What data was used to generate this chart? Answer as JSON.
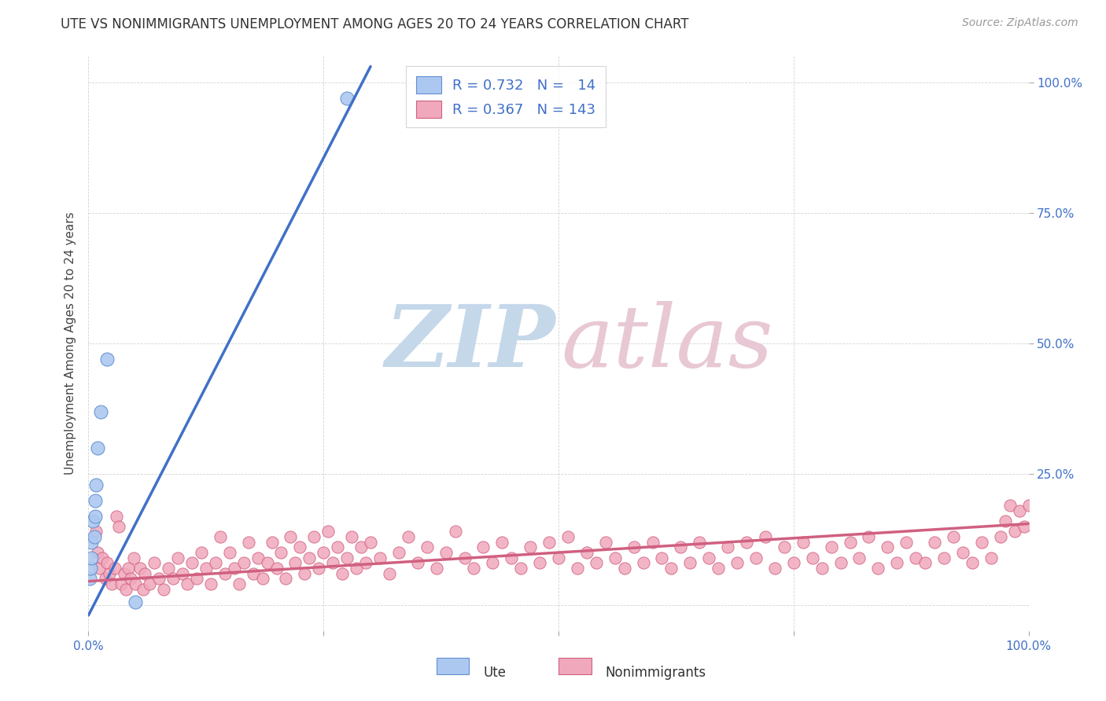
{
  "title": "UTE VS NONIMMIGRANTS UNEMPLOYMENT AMONG AGES 20 TO 24 YEARS CORRELATION CHART",
  "source": "Source: ZipAtlas.com",
  "ylabel": "Unemployment Among Ages 20 to 24 years",
  "xlim": [
    0.0,
    1.0
  ],
  "ylim": [
    -0.05,
    1.05
  ],
  "background_color": "#ffffff",
  "grid_color": "#c8c8c8",
  "title_color": "#333333",
  "source_color": "#999999",
  "ute_color": "#adc8f0",
  "ute_edge_color": "#6090d0",
  "nonimm_color": "#f0a8bc",
  "nonimm_edge_color": "#d06080",
  "ute_line_color": "#4070c8",
  "nonimm_line_color": "#d06080",
  "legend_R_ute": "0.732",
  "legend_N_ute": "14",
  "legend_R_nonimm": "0.367",
  "legend_N_nonimm": "143",
  "right_ytick_labels": [
    "25.0%",
    "50.0%",
    "75.0%",
    "100.0%"
  ],
  "right_ytick_positions": [
    0.25,
    0.5,
    0.75,
    1.0
  ],
  "right_ytick_color": "#4070c8",
  "ute_points": [
    [
      0.001,
      0.05
    ],
    [
      0.002,
      0.07
    ],
    [
      0.003,
      0.09
    ],
    [
      0.003,
      0.12
    ],
    [
      0.005,
      0.16
    ],
    [
      0.006,
      0.13
    ],
    [
      0.007,
      0.17
    ],
    [
      0.007,
      0.2
    ],
    [
      0.008,
      0.23
    ],
    [
      0.01,
      0.3
    ],
    [
      0.013,
      0.37
    ],
    [
      0.02,
      0.47
    ],
    [
      0.05,
      0.005
    ],
    [
      0.275,
      0.97
    ]
  ],
  "nonimm_points": [
    [
      0.008,
      0.14
    ],
    [
      0.01,
      0.1
    ],
    [
      0.011,
      0.07
    ],
    [
      0.015,
      0.09
    ],
    [
      0.018,
      0.05
    ],
    [
      0.02,
      0.08
    ],
    [
      0.022,
      0.06
    ],
    [
      0.025,
      0.04
    ],
    [
      0.028,
      0.07
    ],
    [
      0.03,
      0.17
    ],
    [
      0.032,
      0.15
    ],
    [
      0.035,
      0.04
    ],
    [
      0.038,
      0.06
    ],
    [
      0.04,
      0.03
    ],
    [
      0.042,
      0.07
    ],
    [
      0.045,
      0.05
    ],
    [
      0.048,
      0.09
    ],
    [
      0.05,
      0.04
    ],
    [
      0.055,
      0.07
    ],
    [
      0.058,
      0.03
    ],
    [
      0.06,
      0.06
    ],
    [
      0.065,
      0.04
    ],
    [
      0.07,
      0.08
    ],
    [
      0.075,
      0.05
    ],
    [
      0.08,
      0.03
    ],
    [
      0.085,
      0.07
    ],
    [
      0.09,
      0.05
    ],
    [
      0.095,
      0.09
    ],
    [
      0.1,
      0.06
    ],
    [
      0.105,
      0.04
    ],
    [
      0.11,
      0.08
    ],
    [
      0.115,
      0.05
    ],
    [
      0.12,
      0.1
    ],
    [
      0.125,
      0.07
    ],
    [
      0.13,
      0.04
    ],
    [
      0.135,
      0.08
    ],
    [
      0.14,
      0.13
    ],
    [
      0.145,
      0.06
    ],
    [
      0.15,
      0.1
    ],
    [
      0.155,
      0.07
    ],
    [
      0.16,
      0.04
    ],
    [
      0.165,
      0.08
    ],
    [
      0.17,
      0.12
    ],
    [
      0.175,
      0.06
    ],
    [
      0.18,
      0.09
    ],
    [
      0.185,
      0.05
    ],
    [
      0.19,
      0.08
    ],
    [
      0.195,
      0.12
    ],
    [
      0.2,
      0.07
    ],
    [
      0.205,
      0.1
    ],
    [
      0.21,
      0.05
    ],
    [
      0.215,
      0.13
    ],
    [
      0.22,
      0.08
    ],
    [
      0.225,
      0.11
    ],
    [
      0.23,
      0.06
    ],
    [
      0.235,
      0.09
    ],
    [
      0.24,
      0.13
    ],
    [
      0.245,
      0.07
    ],
    [
      0.25,
      0.1
    ],
    [
      0.255,
      0.14
    ],
    [
      0.26,
      0.08
    ],
    [
      0.265,
      0.11
    ],
    [
      0.27,
      0.06
    ],
    [
      0.275,
      0.09
    ],
    [
      0.28,
      0.13
    ],
    [
      0.285,
      0.07
    ],
    [
      0.29,
      0.11
    ],
    [
      0.295,
      0.08
    ],
    [
      0.3,
      0.12
    ],
    [
      0.31,
      0.09
    ],
    [
      0.32,
      0.06
    ],
    [
      0.33,
      0.1
    ],
    [
      0.34,
      0.13
    ],
    [
      0.35,
      0.08
    ],
    [
      0.36,
      0.11
    ],
    [
      0.37,
      0.07
    ],
    [
      0.38,
      0.1
    ],
    [
      0.39,
      0.14
    ],
    [
      0.4,
      0.09
    ],
    [
      0.41,
      0.07
    ],
    [
      0.42,
      0.11
    ],
    [
      0.43,
      0.08
    ],
    [
      0.44,
      0.12
    ],
    [
      0.45,
      0.09
    ],
    [
      0.46,
      0.07
    ],
    [
      0.47,
      0.11
    ],
    [
      0.48,
      0.08
    ],
    [
      0.49,
      0.12
    ],
    [
      0.5,
      0.09
    ],
    [
      0.51,
      0.13
    ],
    [
      0.52,
      0.07
    ],
    [
      0.53,
      0.1
    ],
    [
      0.54,
      0.08
    ],
    [
      0.55,
      0.12
    ],
    [
      0.56,
      0.09
    ],
    [
      0.57,
      0.07
    ],
    [
      0.58,
      0.11
    ],
    [
      0.59,
      0.08
    ],
    [
      0.6,
      0.12
    ],
    [
      0.61,
      0.09
    ],
    [
      0.62,
      0.07
    ],
    [
      0.63,
      0.11
    ],
    [
      0.64,
      0.08
    ],
    [
      0.65,
      0.12
    ],
    [
      0.66,
      0.09
    ],
    [
      0.67,
      0.07
    ],
    [
      0.68,
      0.11
    ],
    [
      0.69,
      0.08
    ],
    [
      0.7,
      0.12
    ],
    [
      0.71,
      0.09
    ],
    [
      0.72,
      0.13
    ],
    [
      0.73,
      0.07
    ],
    [
      0.74,
      0.11
    ],
    [
      0.75,
      0.08
    ],
    [
      0.76,
      0.12
    ],
    [
      0.77,
      0.09
    ],
    [
      0.78,
      0.07
    ],
    [
      0.79,
      0.11
    ],
    [
      0.8,
      0.08
    ],
    [
      0.81,
      0.12
    ],
    [
      0.82,
      0.09
    ],
    [
      0.83,
      0.13
    ],
    [
      0.84,
      0.07
    ],
    [
      0.85,
      0.11
    ],
    [
      0.86,
      0.08
    ],
    [
      0.87,
      0.12
    ],
    [
      0.88,
      0.09
    ],
    [
      0.89,
      0.08
    ],
    [
      0.9,
      0.12
    ],
    [
      0.91,
      0.09
    ],
    [
      0.92,
      0.13
    ],
    [
      0.93,
      0.1
    ],
    [
      0.94,
      0.08
    ],
    [
      0.95,
      0.12
    ],
    [
      0.96,
      0.09
    ],
    [
      0.97,
      0.13
    ],
    [
      0.975,
      0.16
    ],
    [
      0.98,
      0.19
    ],
    [
      0.985,
      0.14
    ],
    [
      0.99,
      0.18
    ],
    [
      0.995,
      0.15
    ],
    [
      1.0,
      0.19
    ]
  ],
  "ute_trendline_x": [
    0.0,
    0.3
  ],
  "ute_trendline_y": [
    -0.02,
    1.03
  ],
  "nonimm_trendline_x": [
    0.0,
    1.0
  ],
  "nonimm_trendline_y": [
    0.045,
    0.155
  ]
}
